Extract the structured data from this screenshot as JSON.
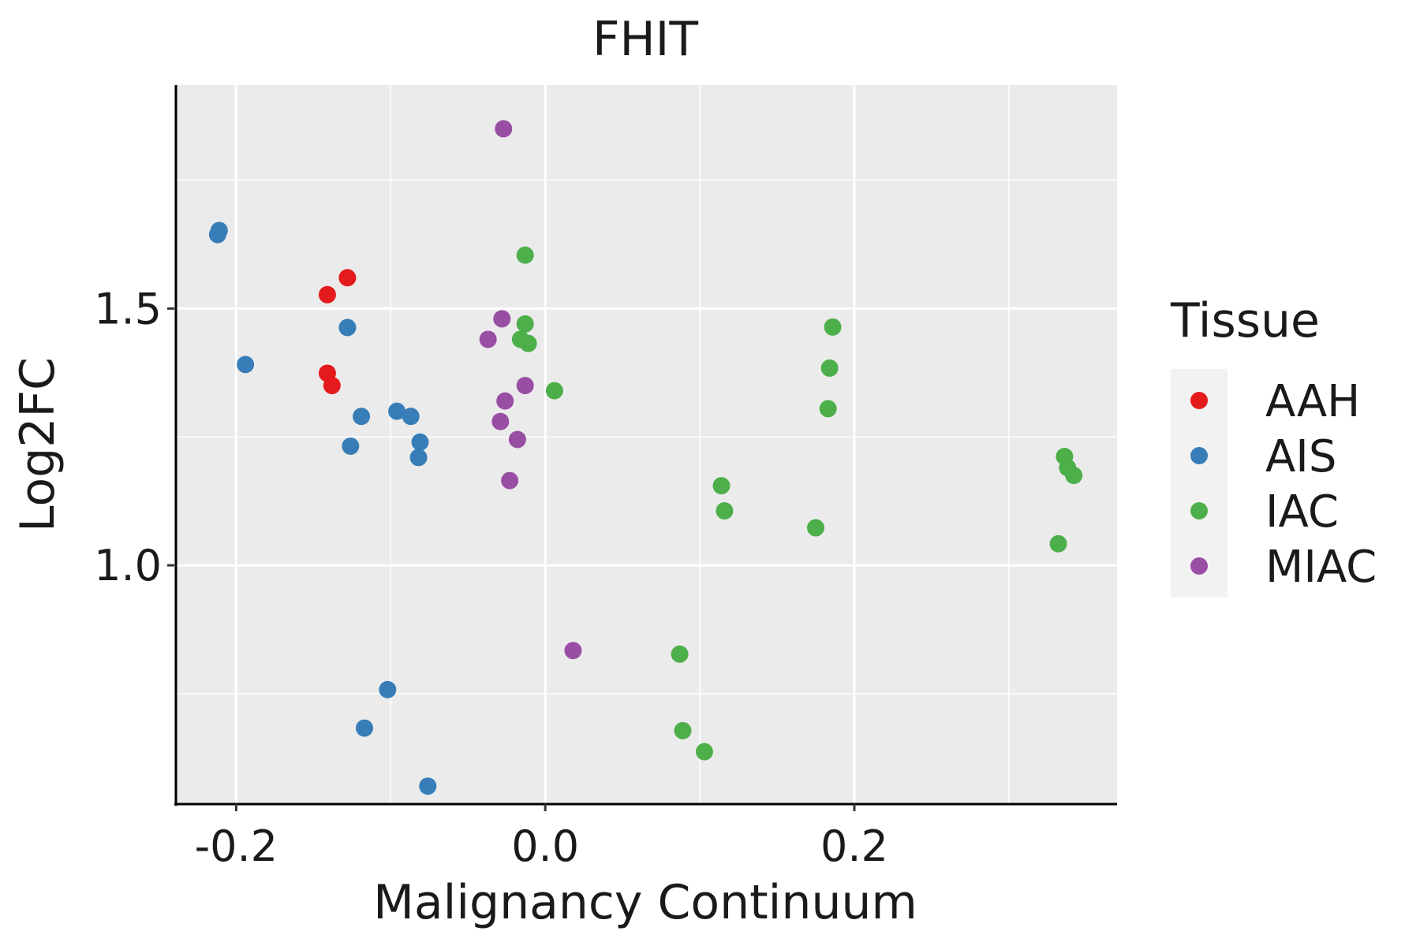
{
  "chart_data": {
    "type": "scatter",
    "title": "FHIT",
    "xlabel": "Malignancy Continuum",
    "ylabel": "Log2FC",
    "xlim": [
      -0.24,
      0.37
    ],
    "ylim": [
      0.535,
      1.935
    ],
    "x_ticks": [
      -0.2,
      0.0,
      0.2
    ],
    "x_tick_labels": [
      "-0.2",
      "0.0",
      "0.2"
    ],
    "y_ticks": [
      1.0,
      1.5
    ],
    "y_tick_labels": [
      "1.0",
      "1.5"
    ],
    "x_minor_grid": [
      -0.1,
      0.1,
      0.3
    ],
    "y_minor_grid": [
      0.75,
      1.25,
      1.75
    ],
    "grid": true,
    "legend": {
      "title": "Tissue",
      "position": "right",
      "entries": [
        {
          "label": "AAH",
          "color": "#E41A1C"
        },
        {
          "label": "AIS",
          "color": "#377EB8"
        },
        {
          "label": "IAC",
          "color": "#4DAF4A"
        },
        {
          "label": "MIAC",
          "color": "#984EA3"
        }
      ]
    },
    "series": [
      {
        "name": "AAH",
        "color": "#E41A1C",
        "points": [
          {
            "x": -0.128,
            "y": 1.56
          },
          {
            "x": -0.141,
            "y": 1.527
          },
          {
            "x": -0.141,
            "y": 1.374
          },
          {
            "x": -0.138,
            "y": 1.35
          }
        ]
      },
      {
        "name": "AIS",
        "color": "#377EB8",
        "points": [
          {
            "x": -0.211,
            "y": 1.652
          },
          {
            "x": -0.212,
            "y": 1.644
          },
          {
            "x": -0.194,
            "y": 1.391
          },
          {
            "x": -0.128,
            "y": 1.463
          },
          {
            "x": -0.119,
            "y": 1.29
          },
          {
            "x": -0.126,
            "y": 1.232
          },
          {
            "x": -0.096,
            "y": 1.3
          },
          {
            "x": -0.087,
            "y": 1.29
          },
          {
            "x": -0.081,
            "y": 1.24
          },
          {
            "x": -0.082,
            "y": 1.21
          },
          {
            "x": -0.102,
            "y": 0.758
          },
          {
            "x": -0.117,
            "y": 0.683
          },
          {
            "x": -0.076,
            "y": 0.57
          }
        ]
      },
      {
        "name": "IAC",
        "color": "#4DAF4A",
        "points": [
          {
            "x": -0.013,
            "y": 1.604
          },
          {
            "x": -0.013,
            "y": 1.47
          },
          {
            "x": -0.016,
            "y": 1.44
          },
          {
            "x": -0.011,
            "y": 1.432
          },
          {
            "x": 0.006,
            "y": 1.34
          },
          {
            "x": 0.186,
            "y": 1.464
          },
          {
            "x": 0.184,
            "y": 1.384
          },
          {
            "x": 0.183,
            "y": 1.305
          },
          {
            "x": 0.114,
            "y": 1.155
          },
          {
            "x": 0.116,
            "y": 1.106
          },
          {
            "x": 0.175,
            "y": 1.073
          },
          {
            "x": 0.336,
            "y": 1.212
          },
          {
            "x": 0.338,
            "y": 1.19
          },
          {
            "x": 0.342,
            "y": 1.175
          },
          {
            "x": 0.332,
            "y": 1.042
          },
          {
            "x": 0.087,
            "y": 0.827
          },
          {
            "x": 0.089,
            "y": 0.678
          },
          {
            "x": 0.103,
            "y": 0.637
          }
        ]
      },
      {
        "name": "MIAC",
        "color": "#984EA3",
        "points": [
          {
            "x": -0.027,
            "y": 1.85
          },
          {
            "x": -0.028,
            "y": 1.48
          },
          {
            "x": -0.037,
            "y": 1.44
          },
          {
            "x": -0.013,
            "y": 1.35
          },
          {
            "x": -0.026,
            "y": 1.32
          },
          {
            "x": -0.029,
            "y": 1.28
          },
          {
            "x": -0.018,
            "y": 1.245
          },
          {
            "x": -0.023,
            "y": 1.165
          },
          {
            "x": 0.018,
            "y": 0.834
          }
        ]
      }
    ]
  }
}
